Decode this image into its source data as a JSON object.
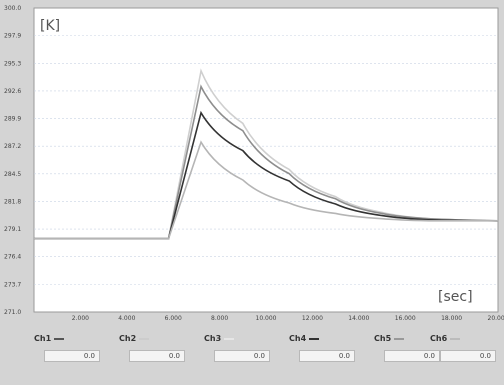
{
  "chart_data": {
    "type": "line",
    "y_unit_label": "[K]",
    "x_unit_label": "[sec]",
    "ylim": [
      271.0,
      300.0
    ],
    "yticks": [
      "271.0",
      "273.7",
      "276.4",
      "279.1",
      "281.8",
      "284.5",
      "287.2",
      "289.9",
      "292.6",
      "295.3",
      "297.9",
      "300.0"
    ],
    "xlim": [
      0,
      20
    ],
    "xticks": [
      "2.000",
      "4.000",
      "6.000",
      "8.000",
      "10.000",
      "12.000",
      "14.000",
      "16.000",
      "18.000",
      "20.000"
    ],
    "xtick_positions": [
      2,
      4,
      6,
      8,
      10,
      12,
      14,
      16,
      18,
      20
    ],
    "grid": true,
    "series": [
      {
        "color": "#cfcfcf",
        "values": [
          [
            0,
            278.0
          ],
          [
            5.8,
            278.0
          ],
          [
            7.2,
            294.0
          ],
          [
            9,
            289.0
          ],
          [
            11,
            284.6
          ],
          [
            13,
            282.0
          ],
          [
            15,
            280.5
          ],
          [
            17,
            279.9
          ],
          [
            20,
            279.7
          ]
        ]
      },
      {
        "color": "#8e8e8e",
        "values": [
          [
            0,
            278.0
          ],
          [
            5.8,
            278.0
          ],
          [
            7.2,
            292.5
          ],
          [
            9,
            288.3
          ],
          [
            11,
            284.2
          ],
          [
            13,
            281.8
          ],
          [
            15,
            280.4
          ],
          [
            17,
            279.9
          ],
          [
            20,
            279.7
          ]
        ]
      },
      {
        "color": "#333333",
        "values": [
          [
            0,
            278.0
          ],
          [
            5.8,
            278.0
          ],
          [
            7.2,
            290.0
          ],
          [
            9,
            286.4
          ],
          [
            11,
            283.5
          ],
          [
            13,
            281.3
          ],
          [
            15,
            280.2
          ],
          [
            17,
            279.8
          ],
          [
            20,
            279.7
          ]
        ]
      },
      {
        "color": "#b5b5b5",
        "values": [
          [
            0,
            278.0
          ],
          [
            5.8,
            278.0
          ],
          [
            7.2,
            287.2
          ],
          [
            9,
            283.6
          ],
          [
            11,
            281.4
          ],
          [
            13,
            280.4
          ],
          [
            15,
            279.9
          ],
          [
            17,
            279.7
          ],
          [
            20,
            279.7
          ]
        ]
      }
    ]
  },
  "channels": [
    {
      "label": "Ch1",
      "value": "0.0",
      "color": "#555555"
    },
    {
      "label": "Ch2",
      "value": "0.0",
      "color": "#cccccc"
    },
    {
      "label": "Ch3",
      "value": "0.0",
      "color": "#e6e6e6"
    },
    {
      "label": "Ch4",
      "value": "0.0",
      "color": "#333333"
    },
    {
      "label": "Ch5",
      "value": "0.0",
      "color": "#999999"
    },
    {
      "label": "Ch6",
      "value": "0.0",
      "color": "#bbbbbb"
    }
  ]
}
